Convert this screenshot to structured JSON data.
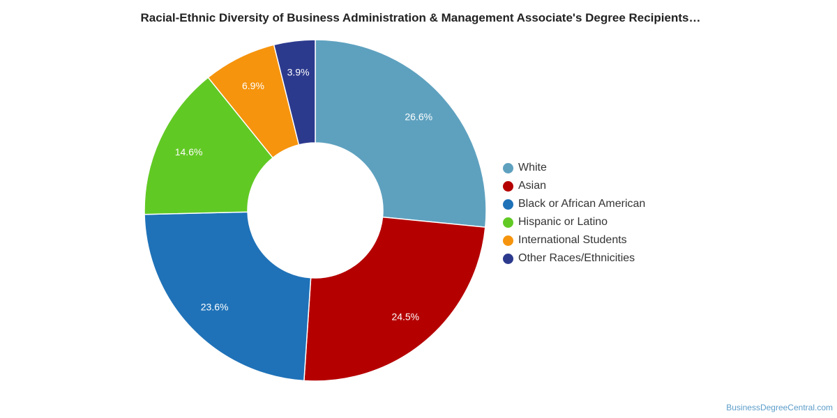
{
  "chart_data": {
    "type": "pie",
    "title": "Racial-Ethnic Diversity of Business Administration & Management Associate's Degree Recipients…",
    "donut": true,
    "legend_position": "right",
    "slices": [
      {
        "label": "White",
        "value": 26.6,
        "display": "26.6%",
        "color": "#5ea1bf"
      },
      {
        "label": "Asian",
        "value": 24.5,
        "display": "24.5%",
        "color": "#b50000"
      },
      {
        "label": "Black or African American",
        "value": 23.6,
        "display": "23.6%",
        "color": "#1f72b8"
      },
      {
        "label": "Hispanic or Latino",
        "value": 14.6,
        "display": "14.6%",
        "color": "#61c924"
      },
      {
        "label": "International Students",
        "value": 6.9,
        "display": "6.9%",
        "color": "#f6940d"
      },
      {
        "label": "Other Races/Ethnicities",
        "value": 3.9,
        "display": "3.9%",
        "color": "#2c3a8e"
      }
    ]
  },
  "footer": {
    "watermark": "BusinessDegreeCentral.com"
  }
}
